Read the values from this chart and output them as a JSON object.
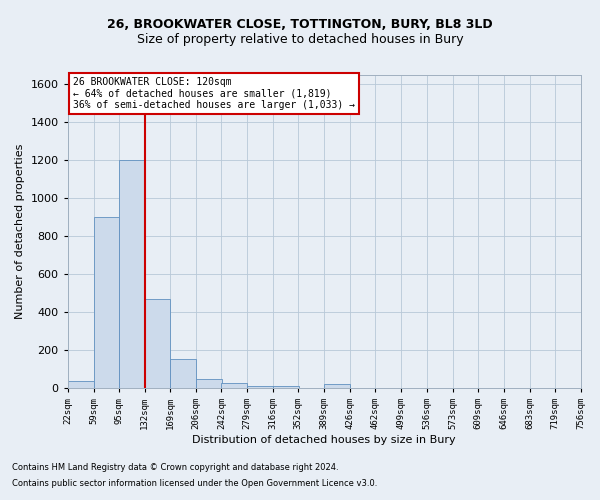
{
  "title1": "26, BROOKWATER CLOSE, TOTTINGTON, BURY, BL8 3LD",
  "title2": "Size of property relative to detached houses in Bury",
  "xlabel": "Distribution of detached houses by size in Bury",
  "ylabel": "Number of detached properties",
  "footnote1": "Contains HM Land Registry data © Crown copyright and database right 2024.",
  "footnote2": "Contains public sector information licensed under the Open Government Licence v3.0.",
  "annotation_line1": "26 BROOKWATER CLOSE: 120sqm",
  "annotation_line2": "← 64% of detached houses are smaller (1,819)",
  "annotation_line3": "36% of semi-detached houses are larger (1,033) →",
  "bin_edges": [
    22,
    59,
    95,
    132,
    169,
    206,
    242,
    279,
    316,
    352,
    389,
    426,
    462,
    499,
    536,
    573,
    609,
    646,
    683,
    719,
    756
  ],
  "bar_values": [
    40,
    900,
    1200,
    470,
    155,
    50,
    25,
    10,
    10,
    0,
    20,
    0,
    0,
    0,
    0,
    0,
    0,
    0,
    0,
    0
  ],
  "bar_color": "#ccdaeb",
  "bar_edge_color": "#6090c0",
  "vline_color": "#cc0000",
  "vline_x": 132,
  "ylim": [
    0,
    1650
  ],
  "background_color": "#e8eef5",
  "annotation_box_color": "#ffffff",
  "annotation_box_edge": "#cc0000",
  "grid_color": "#b8c8d8",
  "title1_fontsize": 9,
  "title2_fontsize": 9,
  "xlabel_fontsize": 8,
  "ylabel_fontsize": 8,
  "xtick_fontsize": 6.5,
  "ytick_fontsize": 8,
  "annot_fontsize": 7,
  "footnote_fontsize": 6
}
